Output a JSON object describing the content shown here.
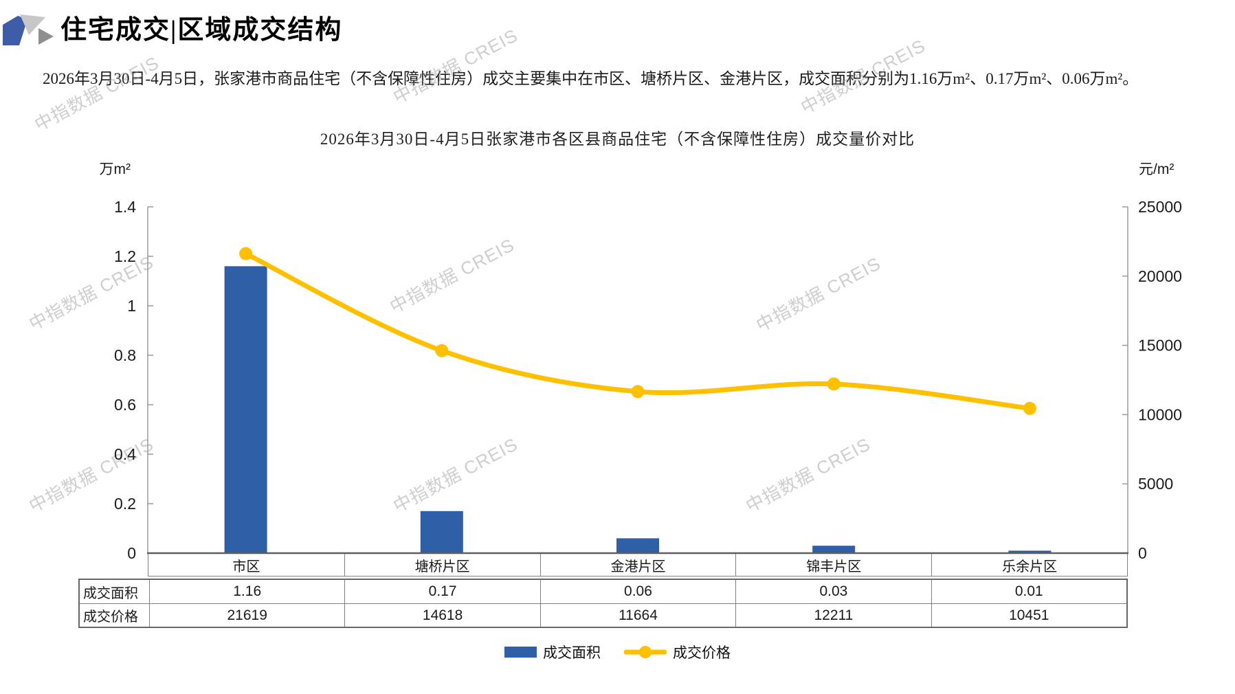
{
  "header": {
    "title": "住宅成交|区域成交结构"
  },
  "summary": {
    "text": "2026年3月30日-4月5日，张家港市商品住宅（不含保障性住房）成交主要集中在市区、塘桥片区、金港片区，成交面积分别为1.16万m²、0.17万m²、0.06万m²。"
  },
  "watermark": {
    "text": "中指数据 CREIS"
  },
  "chart_data": {
    "type": "combo-bar-line",
    "title": "2026年3月30日-4月5日张家港市各区县商品住宅（不含保障性住房）成交量价对比",
    "categories": [
      "市区",
      "塘桥片区",
      "金港片区",
      "锦丰片区",
      "乐余片区"
    ],
    "series": [
      {
        "name": "成交面积",
        "type": "bar",
        "axis": "left",
        "unit": "万m²",
        "color": "#2F5FA6",
        "values": [
          1.16,
          0.17,
          0.06,
          0.03,
          0.01
        ]
      },
      {
        "name": "成交价格",
        "type": "line",
        "axis": "right",
        "unit": "元/m²",
        "color": "#FFC000",
        "values": [
          21619,
          14618,
          11664,
          12211,
          10451
        ]
      }
    ],
    "left_axis": {
      "unit": "万m²",
      "min": 0,
      "max": 1.4,
      "step": 0.2,
      "tick_labels": [
        "1.4",
        "1.2",
        "1",
        "0.8",
        "0.6",
        "0.4",
        "0.2",
        "0"
      ]
    },
    "right_axis": {
      "unit": "元/m²",
      "min": 0,
      "max": 25000,
      "step": 5000,
      "tick_labels": [
        "25000",
        "20000",
        "15000",
        "10000",
        "5000",
        "0"
      ]
    },
    "grid": false,
    "legend_position": "bottom",
    "data_table": {
      "row_labels": [
        "成交面积",
        "成交价格"
      ],
      "rows": [
        [
          "1.16",
          "0.17",
          "0.06",
          "0.03",
          "0.01"
        ],
        [
          "21619",
          "14618",
          "11664",
          "12211",
          "10451"
        ]
      ]
    }
  }
}
